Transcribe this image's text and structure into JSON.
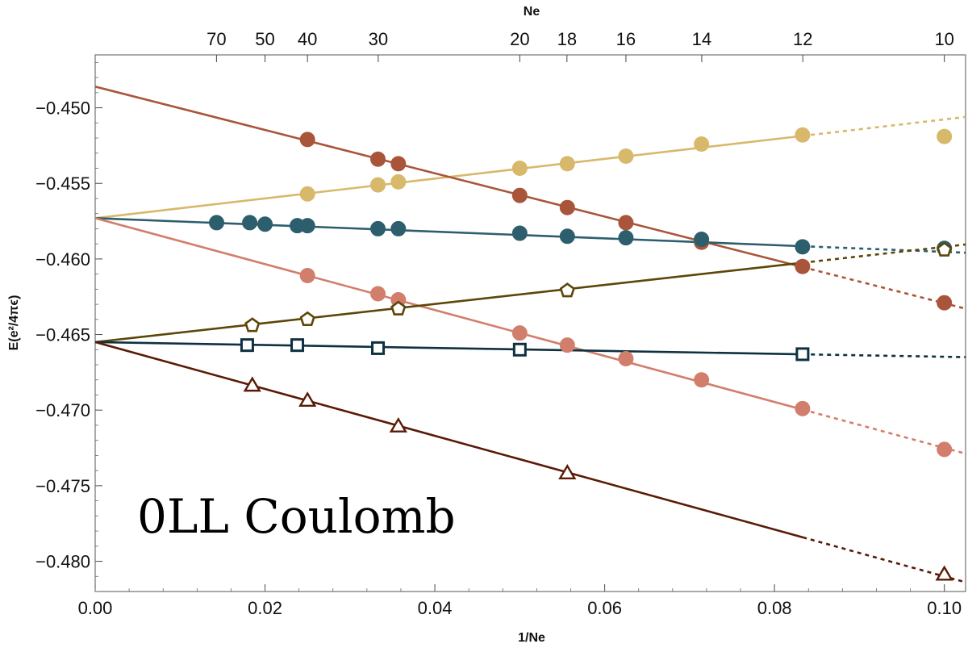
{
  "chart_data": {
    "type": "scatter",
    "annotation": "0LL Coulomb",
    "xlabel": "1/Ne",
    "ylabel": "E(e²/4πϵ)",
    "top_xlabel": "Ne",
    "xlim": [
      0.0,
      0.1025
    ],
    "ylim": [
      -0.482,
      -0.4465
    ],
    "x_ticks": [
      "0.00",
      "0.02",
      "0.04",
      "0.06",
      "0.08",
      "0.10"
    ],
    "y_ticks": [
      "−0.450",
      "−0.455",
      "−0.460",
      "−0.465",
      "−0.470",
      "−0.475",
      "−0.480"
    ],
    "top_ticks": [
      "70",
      "50",
      "40",
      "30",
      "20",
      "18",
      "16",
      "14",
      "12",
      "10"
    ],
    "colors": {
      "gold": "#d8b86a",
      "rust": "#a9553a",
      "teal": "#2d5e6e",
      "salmon": "#d27e6c",
      "olive": "#5c4608",
      "navy": "#0e3140",
      "brown": "#5a1a06"
    },
    "series": [
      {
        "name": "gold-circles",
        "marker": "circle",
        "color": "#d8b86a",
        "fit": {
          "intercept": -0.4573,
          "slope": 0.0653
        },
        "x": [
          0.025,
          0.0333,
          0.0357,
          0.05,
          0.0556,
          0.0625,
          0.0714,
          0.0833,
          0.1
        ],
        "y": [
          -0.4557,
          -0.4551,
          -0.4549,
          -0.454,
          -0.4537,
          -0.4532,
          -0.4524,
          -0.4518,
          -0.4519
        ]
      },
      {
        "name": "rust-circles",
        "marker": "circle",
        "color": "#a9553a",
        "fit": {
          "intercept": -0.4486,
          "slope": -0.1433
        },
        "x": [
          0.025,
          0.0333,
          0.0357,
          0.05,
          0.0556,
          0.0625,
          0.0714,
          0.0833,
          0.1
        ],
        "y": [
          -0.4521,
          -0.4534,
          -0.4537,
          -0.4558,
          -0.4566,
          -0.4576,
          -0.4589,
          -0.4605,
          -0.4629
        ]
      },
      {
        "name": "teal-circles",
        "marker": "circle",
        "color": "#2d5e6e",
        "fit": {
          "intercept": -0.4573,
          "slope": -0.0223
        },
        "x": [
          0.0143,
          0.0182,
          0.02,
          0.0238,
          0.025,
          0.0333,
          0.0357,
          0.05,
          0.0556,
          0.0625,
          0.0714,
          0.0833,
          0.1
        ],
        "y": [
          -0.4576,
          -0.4576,
          -0.4577,
          -0.4578,
          -0.4578,
          -0.458,
          -0.458,
          -0.4583,
          -0.4585,
          -0.4586,
          -0.4587,
          -0.4592,
          -0.4593
        ]
      },
      {
        "name": "salmon-circles",
        "marker": "circle",
        "color": "#d27e6c",
        "fit": {
          "intercept": -0.4573,
          "slope": -0.152
        },
        "x": [
          0.025,
          0.0333,
          0.0357,
          0.05,
          0.0556,
          0.0625,
          0.0714,
          0.0833,
          0.1
        ],
        "y": [
          -0.4611,
          -0.4623,
          -0.4627,
          -0.4649,
          -0.4657,
          -0.4666,
          -0.468,
          -0.4699,
          -0.4726
        ]
      },
      {
        "name": "olive-pentagons",
        "marker": "pentagon",
        "color": "#5c4608",
        "fit": {
          "intercept": -0.4655,
          "slope": 0.063
        },
        "x": [
          0.0185,
          0.025,
          0.0357,
          0.0556,
          0.1
        ],
        "y": [
          -0.4644,
          -0.464,
          -0.4633,
          -0.4621,
          -0.4594
        ]
      },
      {
        "name": "navy-squares",
        "marker": "square",
        "color": "#0e3140",
        "fit": {
          "intercept": -0.4655,
          "slope": -0.0097
        },
        "x": [
          0.0179,
          0.0238,
          0.0333,
          0.05,
          0.0833
        ],
        "y": [
          -0.4657,
          -0.4657,
          -0.4659,
          -0.466,
          -0.4663
        ]
      },
      {
        "name": "brown-triangles",
        "marker": "triangle",
        "color": "#5a1a06",
        "fit": {
          "intercept": -0.4655,
          "slope": -0.155
        },
        "x": [
          0.0185,
          0.025,
          0.0357,
          0.0556,
          0.1
        ],
        "y": [
          -0.4684,
          -0.4694,
          -0.4711,
          -0.4742,
          -0.4809
        ]
      }
    ]
  }
}
